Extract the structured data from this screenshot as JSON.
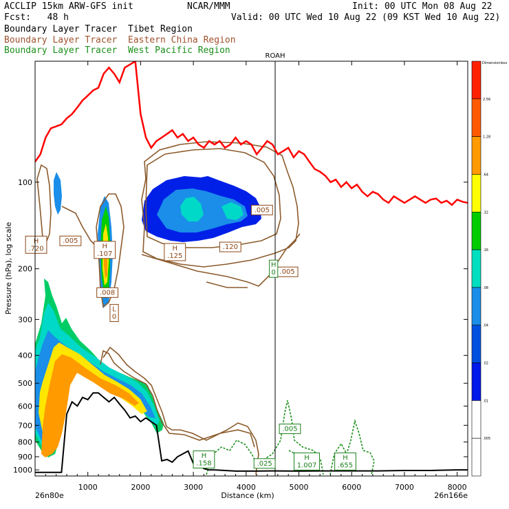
{
  "header": {
    "model": "ACCLIP 15km ARW-GFS init",
    "org": "NCAR/MMM",
    "init": "Init: 00 UTC Mon 08 Aug 22",
    "fcst": "Fcst:   48 h",
    "valid": "Valid: 00 UTC Wed 10 Aug 22 (09 KST Wed 10 Aug 22)",
    "legend": [
      {
        "text": "Boundary Layer Tracer  Tibet Region",
        "color": "#000000"
      },
      {
        "text": "Boundary Layer Tracer  Eastern China Region",
        "color": "#8b4513"
      },
      {
        "text": "Boundary Layer Tracer  West Pacific Region",
        "color": "#1a7f1a"
      }
    ]
  },
  "chart_data": {
    "type": "contour",
    "xlabel": "Distance (km)",
    "ylabel": "Pressure (hPa), log scale",
    "xlim": [
      0,
      8200
    ],
    "ylim": [
      1050,
      38
    ],
    "xticks": [
      "1000",
      "2000",
      "3000",
      "4000",
      "5000",
      "6000",
      "7000",
      "8000"
    ],
    "xtick_values": [
      1000,
      2000,
      3000,
      4000,
      5000,
      6000,
      7000,
      8000
    ],
    "yticks": [
      "100",
      "200",
      "300",
      "400",
      "500",
      "600",
      "700",
      "800",
      "900",
      "1000"
    ],
    "ytick_values": [
      100,
      200,
      300,
      400,
      500,
      600,
      700,
      800,
      900,
      1000
    ],
    "start_label": "26n80e",
    "end_label": "26n166e",
    "marker": {
      "label": "ROAH",
      "x": 4550
    },
    "colorbar": {
      "title": "Dimensionless",
      "labels": [
        "2.56",
        "1.28",
        ".64",
        ".32",
        ".16",
        ".08",
        ".04",
        ".02",
        ".01",
        ".005"
      ],
      "colors": [
        "#ff2000",
        "#ff5a00",
        "#ff9a00",
        "#ffff00",
        "#00cc00",
        "#00e0c0",
        "#1a8ee8",
        "#0050e0",
        "#0018e8",
        "#ffffff",
        "#ffffff"
      ]
    },
    "tropopause": {
      "color": "#ff0000",
      "x": [
        0,
        100,
        200,
        300,
        400,
        500,
        600,
        700,
        800,
        900,
        1000,
        1100,
        1200,
        1300,
        1400,
        1500,
        1600,
        1700,
        1800,
        1900,
        2000,
        2100,
        2200,
        2300,
        2400,
        2500,
        2600,
        2700,
        2800,
        2900,
        3000,
        3100,
        3200,
        3300,
        3400,
        3500,
        3600,
        3700,
        3800,
        3900,
        4000,
        4100,
        4200,
        4300,
        4400,
        4500,
        4600,
        4700,
        4800,
        4900,
        5000,
        5100,
        5200,
        5300,
        5400,
        5500,
        5600,
        5700,
        5800,
        5900,
        6000,
        6100,
        6200,
        6300,
        6400,
        6500,
        6600,
        6700,
        6800,
        6900,
        7000,
        7100,
        7200,
        7300,
        7400,
        7500,
        7600,
        7700,
        7800,
        7900,
        8000,
        8100,
        8200
      ],
      "p": [
        85,
        80,
        70,
        65,
        64,
        63,
        60,
        58,
        55,
        52,
        50,
        48,
        47,
        42,
        40,
        42,
        45,
        40,
        39,
        38,
        58,
        70,
        76,
        72,
        70,
        68,
        66,
        70,
        68,
        72,
        70,
        74,
        76,
        72,
        74,
        72,
        76,
        74,
        70,
        74,
        72,
        74,
        80,
        76,
        72,
        74,
        80,
        78,
        76,
        82,
        78,
        80,
        85,
        90,
        92,
        95,
        100,
        98,
        104,
        100,
        105,
        102,
        108,
        112,
        108,
        110,
        115,
        118,
        112,
        115,
        118,
        115,
        112,
        115,
        118,
        115,
        114,
        118,
        116,
        120,
        115,
        117,
        118
      ]
    },
    "terrain": {
      "color": "#000000",
      "x": [
        0,
        100,
        200,
        300,
        400,
        500,
        600,
        700,
        800,
        900,
        1000,
        1100,
        1200,
        1300,
        1400,
        1500,
        1600,
        1700,
        1800,
        1900,
        2000,
        2100,
        2200,
        2300,
        2400,
        2500,
        2600,
        2700,
        2800,
        2900,
        3000,
        3100,
        3200,
        3300,
        3400,
        3600,
        3800,
        4000,
        4200,
        4500,
        5000,
        5500,
        6000,
        6500,
        7000,
        7500,
        8000,
        8200
      ],
      "p": [
        1020,
        1020,
        1020,
        1020,
        1020,
        1020,
        640,
        580,
        600,
        560,
        570,
        540,
        540,
        560,
        580,
        560,
        590,
        620,
        660,
        650,
        680,
        660,
        680,
        700,
        930,
        920,
        940,
        900,
        880,
        860,
        950,
        960,
        990,
        1000,
        1000,
        1005,
        1010,
        1010,
        1010,
        1008,
        1010,
        1008,
        1008,
        1008,
        1005,
        1005,
        1000,
        1000
      ]
    },
    "contour_labels": [
      {
        "text": ".005",
        "x": 670,
        "p": 160,
        "color": "#8b4513"
      },
      {
        "text": "H\n.720",
        "x": 20,
        "p": 165,
        "color": "#8b4513"
      },
      {
        "text": "H\n.107",
        "x": 1320,
        "p": 172,
        "color": "#8b4513"
      },
      {
        "text": ".008",
        "x": 1370,
        "p": 242,
        "color": "#8b4513"
      },
      {
        "text": "L\n0",
        "x": 1500,
        "p": 285,
        "color": "#8b4513"
      },
      {
        "text": "H\n.125",
        "x": 2650,
        "p": 175,
        "color": "#8b4513"
      },
      {
        "text": ".120",
        "x": 3700,
        "p": 168,
        "color": "#8b4513"
      },
      {
        "text": ".005",
        "x": 4300,
        "p": 125,
        "color": "#8b4513"
      },
      {
        "text": ".005",
        "x": 4780,
        "p": 205,
        "color": "#8b4513"
      },
      {
        "text": "H\n0",
        "x": 4520,
        "p": 200,
        "color": "#1a7f1a"
      },
      {
        "text": ".005",
        "x": 4830,
        "p": 720,
        "color": "#1a7f1a"
      },
      {
        "text": "H\n.158",
        "x": 3200,
        "p": 920,
        "color": "#1a7f1a"
      },
      {
        "text": ".025",
        "x": 4350,
        "p": 950,
        "color": "#1a7f1a"
      },
      {
        "text": "H\n1.007",
        "x": 5150,
        "p": 935,
        "color": "#1a7f1a"
      },
      {
        "text": "H\n.655",
        "x": 5880,
        "p": 935,
        "color": "#1a7f1a"
      }
    ]
  }
}
